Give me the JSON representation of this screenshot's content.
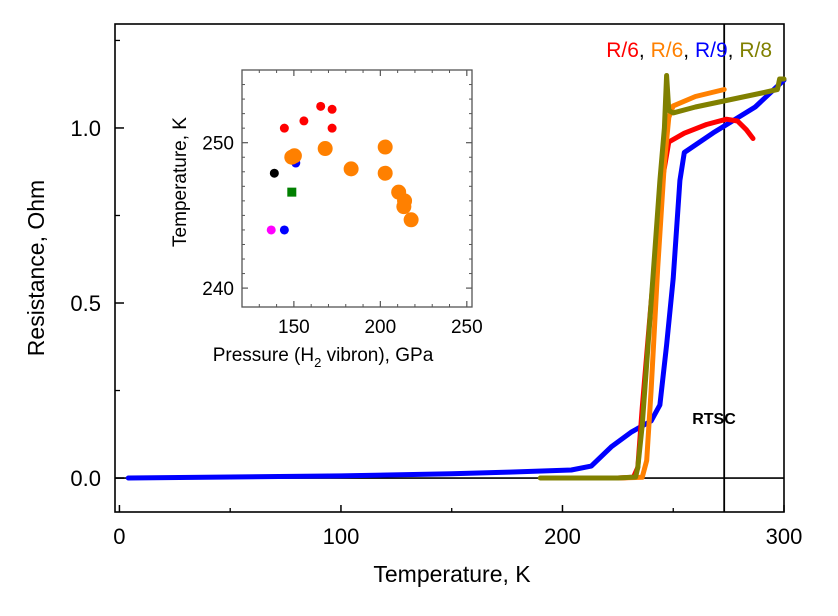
{
  "chart_data": [
    {
      "id": "main",
      "type": "line",
      "title": "",
      "xlabel": "Temperature, K",
      "ylabel": "Resistance, Ohm",
      "xlim": [
        -2,
        300
      ],
      "ylim": [
        -0.097,
        1.297
      ],
      "xticks": [
        0,
        100,
        200,
        300
      ],
      "xtick_labels": [
        "0",
        "100",
        "200",
        "300"
      ],
      "xminor": [
        50,
        150,
        250
      ],
      "yticks": [
        0.0,
        0.5,
        1.0
      ],
      "ytick_labels": [
        "0.0",
        "0.5",
        "1.0"
      ],
      "yminor": [
        0.25,
        0.75,
        1.25
      ],
      "grid": false,
      "reference_lines": [
        {
          "orientation": "horizontal",
          "value": 0.0
        },
        {
          "orientation": "vertical",
          "value": 273
        }
      ],
      "annotations": [
        {
          "text": "RTSC",
          "x": 276,
          "y": 0.17
        }
      ],
      "legend": {
        "placement": "top-right",
        "separator": ", ",
        "entries": [
          {
            "label": "R/6",
            "color": "#FF0000"
          },
          {
            "label": "R/6",
            "color": "#FF8000"
          },
          {
            "label": "R/9",
            "color": "#0000FF"
          },
          {
            "label": "R/8",
            "color": "#808000"
          }
        ]
      },
      "series": [
        {
          "name": "R/9 (blue)",
          "color": "#0000FF",
          "x": [
            4,
            50,
            100,
            150,
            176,
            204,
            213,
            222,
            231,
            240,
            244,
            247,
            250,
            253,
            255,
            268,
            287,
            300
          ],
          "y": [
            0.0,
            0.003,
            0.006,
            0.012,
            0.017,
            0.023,
            0.034,
            0.089,
            0.131,
            0.163,
            0.209,
            0.38,
            0.57,
            0.85,
            0.93,
            0.986,
            1.06,
            1.137
          ]
        },
        {
          "name": "R/6 (red)",
          "color": "#FF0000",
          "x": [
            191,
            210,
            225,
            232,
            234,
            236,
            240,
            245,
            248,
            255,
            265,
            274,
            279,
            283,
            286
          ],
          "y": [
            0.0,
            0.0,
            0.0,
            0.002,
            0.03,
            0.2,
            0.5,
            0.85,
            0.96,
            0.985,
            1.01,
            1.025,
            1.02,
            0.995,
            0.97
          ]
        },
        {
          "name": "R/6 (orange)",
          "color": "#FF8000",
          "x": [
            196,
            210,
            225,
            236,
            238,
            240,
            243,
            246,
            248,
            250,
            260,
            273
          ],
          "y": [
            0.0,
            0.0,
            0.0,
            0.002,
            0.05,
            0.25,
            0.6,
            0.9,
            1.03,
            1.063,
            1.09,
            1.11
          ]
        },
        {
          "name": "R/8 (olive)",
          "color": "#808000",
          "x": [
            190,
            210,
            225,
            233,
            234,
            236,
            240,
            244,
            246,
            247,
            248,
            250,
            260,
            275,
            290,
            297,
            298,
            300
          ],
          "y": [
            0.0,
            0.0,
            0.0,
            0.003,
            0.03,
            0.15,
            0.5,
            0.85,
            1.0,
            1.15,
            1.05,
            1.043,
            1.06,
            1.08,
            1.1,
            1.11,
            1.14,
            1.14
          ]
        }
      ]
    },
    {
      "id": "inset",
      "type": "scatter",
      "title": "",
      "xlabel_parts": [
        "Pressure (H",
        "2",
        " vibron), GPa"
      ],
      "ylabel": "Temperature, K",
      "xlim": [
        120,
        253
      ],
      "ylim": [
        238.7,
        255
      ],
      "xticks": [
        150,
        200,
        250
      ],
      "xtick_labels": [
        "150",
        "200",
        "250"
      ],
      "xminor": [
        130,
        140,
        160,
        170,
        180,
        190,
        210,
        220,
        230,
        240
      ],
      "yticks": [
        240,
        250
      ],
      "ytick_labels": [
        "240",
        "250"
      ],
      "yminor": [
        241,
        242,
        243,
        244,
        245,
        246,
        247,
        248,
        249,
        251,
        252,
        253,
        254
      ],
      "grid": false,
      "series": [
        {
          "name": "red",
          "color": "#FF0000",
          "marker": "circle-small",
          "x": [
            144.5,
            155.8,
            165.5,
            172.1,
            172.1
          ],
          "y": [
            251.0,
            251.5,
            252.5,
            252.3,
            251.0
          ]
        },
        {
          "name": "blue",
          "color": "#0000FF",
          "marker": "circle-small",
          "x": [
            151.1,
            144.5
          ],
          "y": [
            248.6,
            244.0
          ]
        },
        {
          "name": "orange",
          "color": "#FF8000",
          "marker": "circle-large",
          "x": [
            148.8,
            150.3,
            168.1,
            183.1,
            202.8,
            202.8,
            210.6,
            214.0,
            213.6,
            217.8
          ],
          "y": [
            249.0,
            249.1,
            249.6,
            248.2,
            249.7,
            247.9,
            246.6,
            246.0,
            245.6,
            244.7
          ]
        },
        {
          "name": "black",
          "color": "#000000",
          "marker": "circle-small",
          "x": [
            138.7
          ],
          "y": [
            247.9
          ]
        },
        {
          "name": "green",
          "color": "#008000",
          "marker": "square",
          "x": [
            148.8
          ],
          "y": [
            246.6
          ]
        },
        {
          "name": "magenta",
          "color": "#FF00FF",
          "marker": "circle-small",
          "x": [
            136.9
          ],
          "y": [
            244.0
          ]
        }
      ]
    }
  ]
}
